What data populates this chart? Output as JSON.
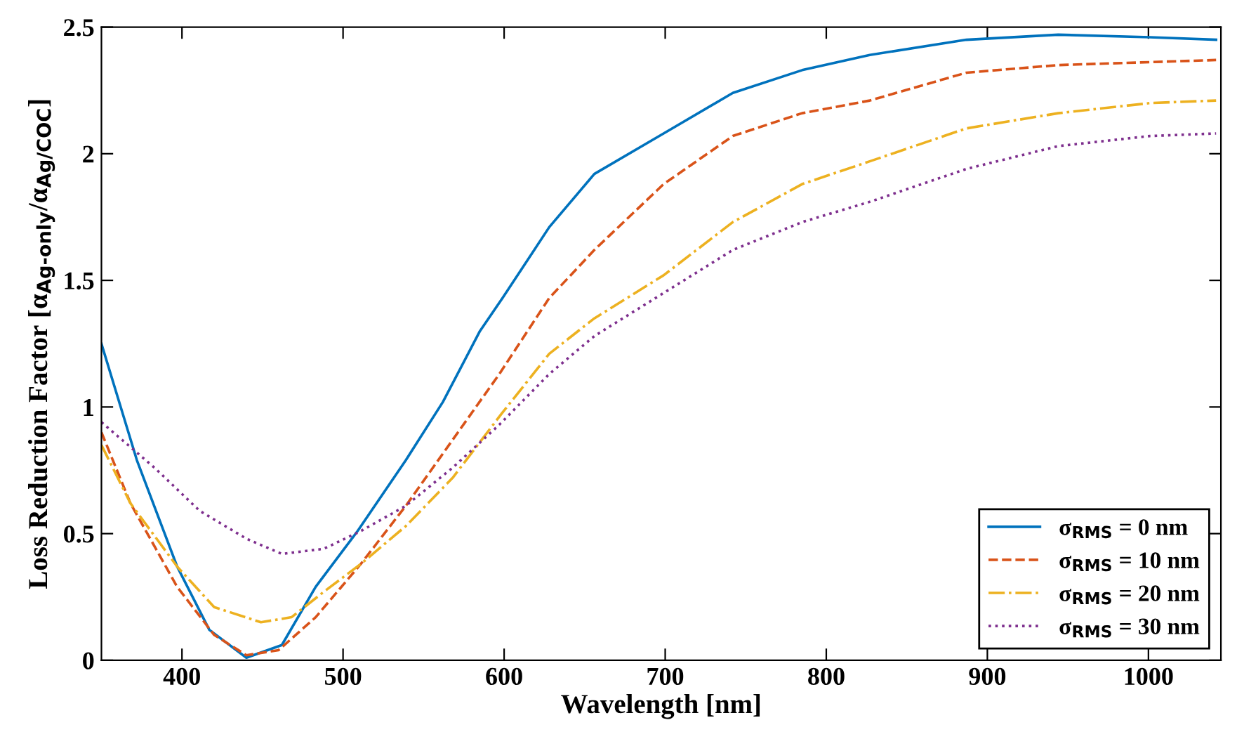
{
  "chart_data": {
    "type": "line",
    "xlabel": "Wavelength [nm]",
    "ylabel": "Loss Reduction Factor [α$_{Ag-only}$/α$_{Ag/COC}$]",
    "xlim": [
      350,
      1045
    ],
    "xticks": [
      400,
      500,
      600,
      700,
      800,
      900,
      1000
    ],
    "ylim": [
      0,
      2.5
    ],
    "yticks": [
      0,
      0.5,
      1,
      1.5,
      2,
      2.5
    ],
    "grid": false,
    "legend": "bottom right",
    "series": [
      {
        "name": "σ$_{RMS}$ = 0 nm",
        "color": "#0072bd",
        "line_style": "solid",
        "x": [
          350,
          372,
          397,
          417,
          440,
          462,
          483,
          509,
          539,
          562,
          585,
          599,
          628,
          656,
          699,
          742,
          785,
          827,
          887,
          944,
          1001,
          1042
        ],
        "values": [
          1.25,
          0.79,
          0.37,
          0.12,
          0.01,
          0.06,
          0.29,
          0.51,
          0.79,
          1.02,
          1.3,
          1.43,
          1.71,
          1.92,
          2.08,
          2.24,
          2.33,
          2.39,
          2.45,
          2.47,
          2.46,
          2.45
        ]
      },
      {
        "name": "σ$_{RMS}$ = 10 nm",
        "color": "#d95319",
        "line_style": "dashed",
        "x": [
          350,
          368,
          397,
          420,
          440,
          460,
          483,
          511,
          539,
          568,
          597,
          628,
          656,
          699,
          742,
          785,
          827,
          887,
          944,
          1042
        ],
        "values": [
          0.9,
          0.62,
          0.29,
          0.1,
          0.02,
          0.04,
          0.17,
          0.38,
          0.61,
          0.87,
          1.13,
          1.43,
          1.62,
          1.88,
          2.07,
          2.16,
          2.21,
          2.32,
          2.35,
          2.37
        ]
      },
      {
        "name": "σ$_{RMS}$ = 20 nm",
        "color": "#edb120",
        "line_style": "dashdot",
        "x": [
          350,
          368,
          397,
          420,
          449,
          468,
          488,
          511,
          539,
          568,
          598,
          628,
          656,
          699,
          742,
          785,
          827,
          887,
          944,
          1001,
          1042
        ],
        "values": [
          0.85,
          0.62,
          0.37,
          0.21,
          0.15,
          0.17,
          0.27,
          0.38,
          0.53,
          0.72,
          0.97,
          1.21,
          1.35,
          1.52,
          1.73,
          1.88,
          1.97,
          2.1,
          2.16,
          2.2,
          2.21
        ]
      },
      {
        "name": "σ$_{RMS}$ = 30 nm",
        "color": "#7e2f8e",
        "line_style": "dotted",
        "x": [
          350,
          383,
          411,
          440,
          462,
          488,
          511,
          539,
          568,
          597,
          628,
          656,
          699,
          742,
          785,
          827,
          887,
          944,
          1001,
          1042
        ],
        "values": [
          0.94,
          0.76,
          0.59,
          0.48,
          0.42,
          0.44,
          0.51,
          0.61,
          0.76,
          0.93,
          1.13,
          1.28,
          1.45,
          1.62,
          1.73,
          1.81,
          1.94,
          2.03,
          2.07,
          2.08
        ]
      }
    ]
  }
}
